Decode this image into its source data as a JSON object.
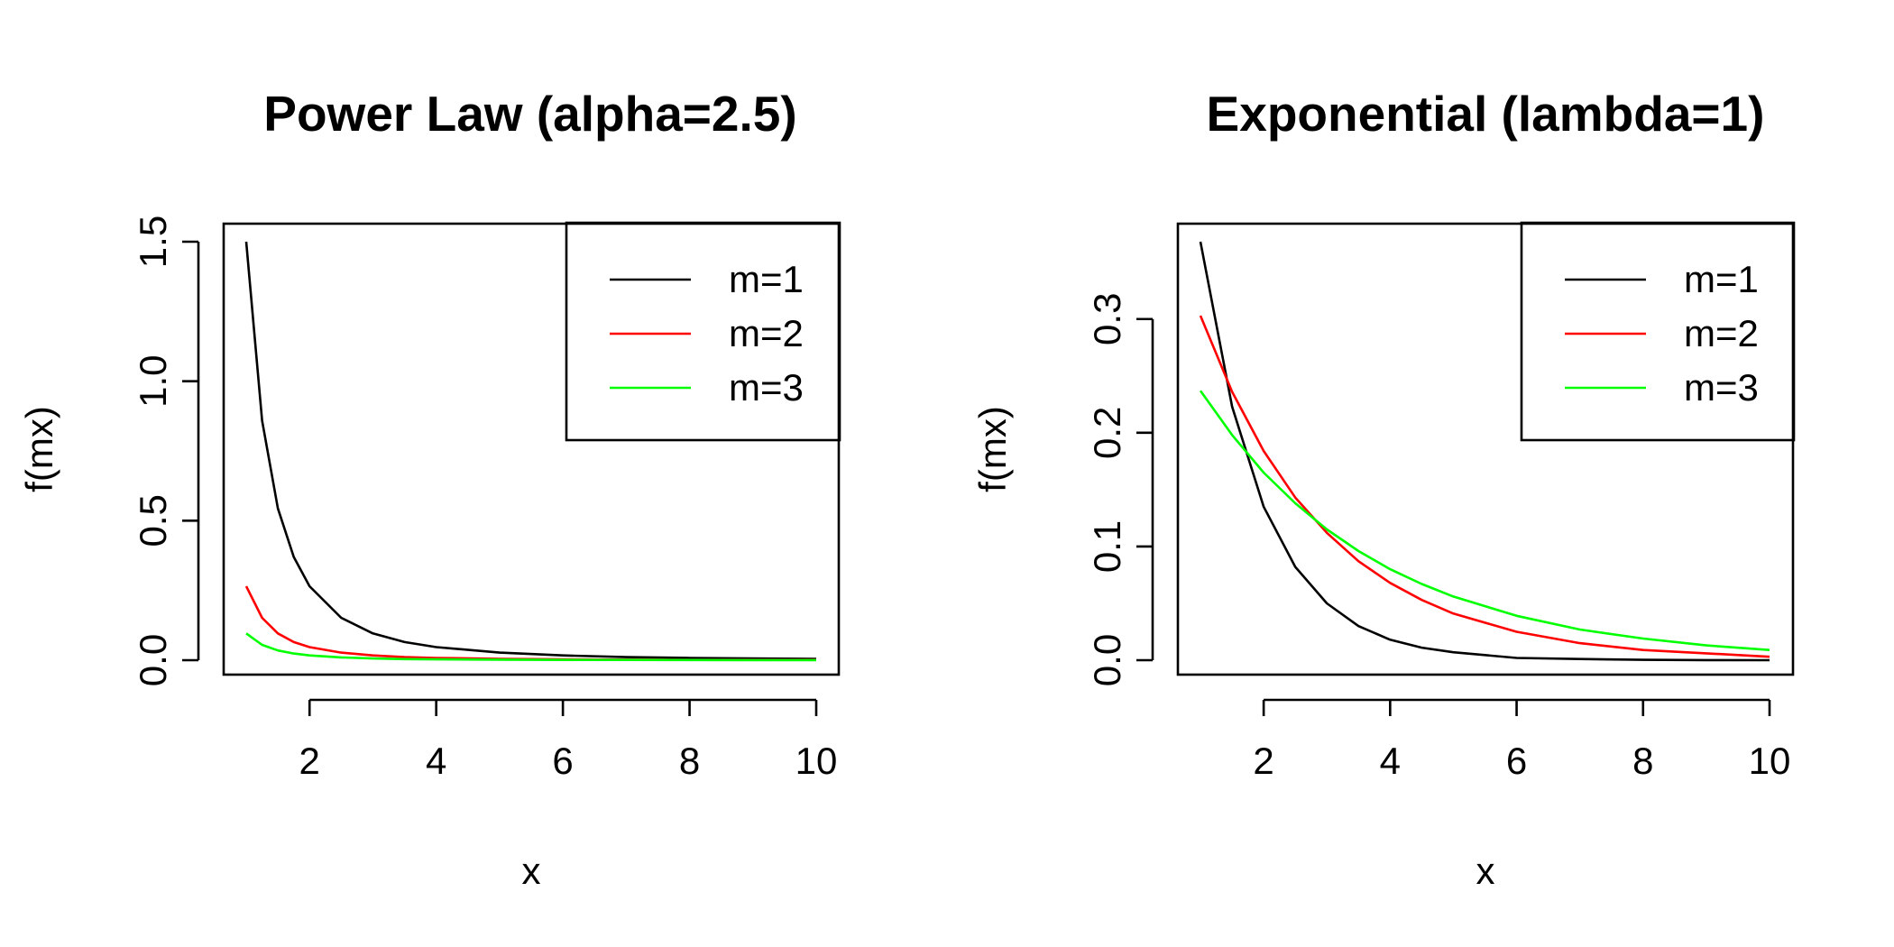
{
  "chart_data": [
    {
      "type": "line",
      "title": "Power Law (alpha=2.5)",
      "xlabel": "x",
      "ylabel": "f(mx)",
      "xlim": [
        1,
        10
      ],
      "ylim": [
        0,
        1.5
      ],
      "xticks": [
        "2",
        "4",
        "6",
        "8",
        "10"
      ],
      "yticks": [
        "0.0",
        "0.5",
        "1.0",
        "1.5"
      ],
      "legend_position": "top-right",
      "x": [
        1,
        1.25,
        1.5,
        1.75,
        2,
        2.5,
        3,
        3.5,
        4,
        5,
        6,
        7,
        8,
        9,
        10
      ],
      "series": [
        {
          "name": "m=1",
          "color": "#000000",
          "values": [
            1.5,
            0.859,
            0.544,
            0.37,
            0.265,
            0.152,
            0.096,
            0.065,
            0.047,
            0.027,
            0.017,
            0.011,
            0.008,
            0.006,
            0.005
          ]
        },
        {
          "name": "m=2",
          "color": "#ff0000",
          "values": [
            0.265,
            0.152,
            0.096,
            0.065,
            0.047,
            0.027,
            0.017,
            0.011,
            0.008,
            0.005,
            0.003,
            0.002,
            0.001,
            0.001,
            0.001
          ]
        },
        {
          "name": "m=3",
          "color": "#00ff00",
          "values": [
            0.096,
            0.055,
            0.035,
            0.024,
            0.017,
            0.01,
            0.006,
            0.004,
            0.003,
            0.002,
            0.001,
            0.001,
            0.0005,
            0.0004,
            0.0003
          ]
        }
      ]
    },
    {
      "type": "line",
      "title": "Exponential (lambda=1)",
      "xlabel": "x",
      "ylabel": "f(mx)",
      "xlim": [
        1,
        10
      ],
      "ylim": [
        0,
        0.368
      ],
      "xticks": [
        "2",
        "4",
        "6",
        "8",
        "10"
      ],
      "yticks": [
        "0.0",
        "0.1",
        "0.2",
        "0.3"
      ],
      "legend_position": "top-right",
      "x": [
        1,
        1.5,
        2,
        2.5,
        3,
        3.5,
        4,
        4.5,
        5,
        6,
        7,
        8,
        9,
        10
      ],
      "series": [
        {
          "name": "m=1",
          "color": "#000000",
          "values": [
            0.368,
            0.223,
            0.135,
            0.082,
            0.05,
            0.03,
            0.018,
            0.011,
            0.007,
            0.002,
            0.001,
            0.0003,
            0.0001,
            0.0
          ]
        },
        {
          "name": "m=2",
          "color": "#ff0000",
          "values": [
            0.303,
            0.236,
            0.184,
            0.143,
            0.112,
            0.087,
            0.068,
            0.053,
            0.041,
            0.025,
            0.015,
            0.009,
            0.006,
            0.003
          ]
        },
        {
          "name": "m=3",
          "color": "#00ff00",
          "values": [
            0.237,
            0.198,
            0.165,
            0.138,
            0.115,
            0.096,
            0.08,
            0.067,
            0.056,
            0.039,
            0.027,
            0.019,
            0.013,
            0.009
          ]
        }
      ]
    }
  ]
}
